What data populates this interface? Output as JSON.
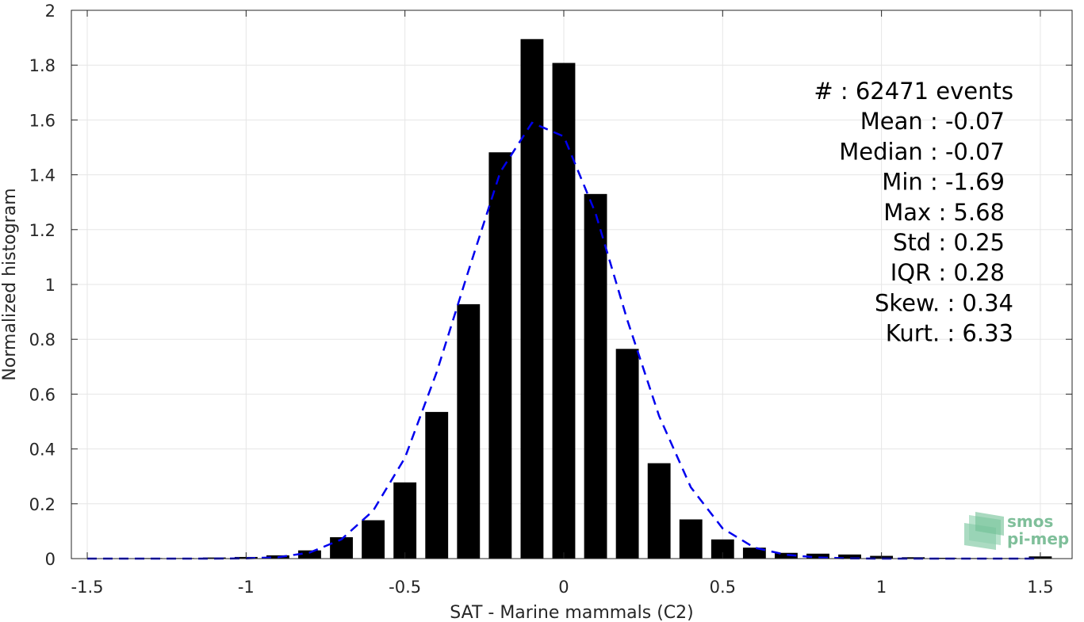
{
  "chart_data": {
    "type": "bar",
    "xlabel": "SAT - Marine mammals (C2)",
    "ylabel": "Normalized histogram",
    "xlim": [
      -1.55,
      1.6
    ],
    "ylim": [
      0,
      2
    ],
    "x_ticks": [
      "-1.5",
      "-1",
      "-0.5",
      "0",
      "0.5",
      "1",
      "1.5"
    ],
    "x_tick_values": [
      -1.5,
      -1,
      -0.5,
      0,
      0.5,
      1,
      1.5
    ],
    "y_ticks": [
      "0",
      "0.2",
      "0.4",
      "0.6",
      "0.8",
      "1",
      "1.2",
      "1.4",
      "1.6",
      "1.8",
      "2"
    ],
    "y_tick_values": [
      0,
      0.2,
      0.4,
      0.6,
      0.8,
      1,
      1.2,
      1.4,
      1.6,
      1.8,
      2
    ],
    "grid": true,
    "bar_color": "#000000",
    "fit_color": "#0000ee",
    "histogram": {
      "bin_centers": [
        -1.5,
        -1.4,
        -1.3,
        -1.2,
        -1.1,
        -1.0,
        -0.9,
        -0.8,
        -0.7,
        -0.6,
        -0.5,
        -0.4,
        -0.3,
        -0.2,
        -0.1,
        0.0,
        0.1,
        0.2,
        0.3,
        0.4,
        0.5,
        0.6,
        0.7,
        0.8,
        0.9,
        1.0,
        1.1,
        1.2,
        1.3,
        1.4,
        1.5
      ],
      "values": [
        0.001,
        0.001,
        0.002,
        0.002,
        0.004,
        0.006,
        0.012,
        0.03,
        0.078,
        0.14,
        0.278,
        0.535,
        0.928,
        1.482,
        1.895,
        1.808,
        1.33,
        0.765,
        0.348,
        0.143,
        0.07,
        0.04,
        0.021,
        0.018,
        0.015,
        0.01,
        0.005,
        0.003,
        0.002,
        0.002,
        0.008
      ]
    },
    "fit_curve": {
      "x": [
        -1.5,
        -1.4,
        -1.3,
        -1.2,
        -1.1,
        -1.0,
        -0.9,
        -0.8,
        -0.7,
        -0.6,
        -0.5,
        -0.4,
        -0.3,
        -0.2,
        -0.1,
        0.0,
        0.1,
        0.2,
        0.3,
        0.4,
        0.5,
        0.6,
        0.7,
        0.8,
        0.9,
        1.0,
        1.1,
        1.2,
        1.3,
        1.4,
        1.5
      ],
      "y": [
        0,
        0,
        0,
        0,
        0,
        0.001,
        0.005,
        0.022,
        0.07,
        0.175,
        0.368,
        0.68,
        1.05,
        1.41,
        1.59,
        1.54,
        1.26,
        0.87,
        0.52,
        0.26,
        0.11,
        0.04,
        0.014,
        0.004,
        0.001,
        0,
        0,
        0,
        0,
        0,
        0
      ]
    }
  },
  "stats": [
    {
      "label": "#  : 62471 events"
    },
    {
      "label": "Mean : -0.07"
    },
    {
      "label": "Median : -0.07"
    },
    {
      "label": "Min : -1.69"
    },
    {
      "label": "Max : 5.68"
    },
    {
      "label": "Std : 0.25"
    },
    {
      "label": "IQR : 0.28"
    },
    {
      "label": "Skew. : 0.34"
    },
    {
      "label": "Kurt. : 6.33"
    }
  ],
  "logo": {
    "line1": "smos",
    "line2": "pi-mep",
    "color": "#7fbf9a"
  }
}
